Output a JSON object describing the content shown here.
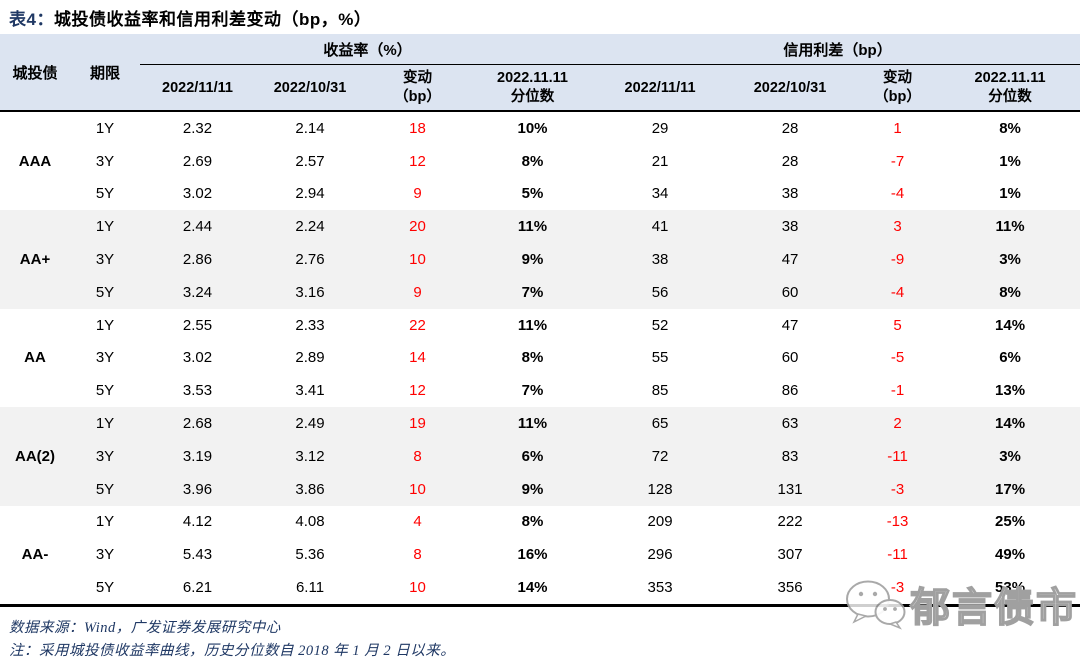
{
  "title": {
    "prefix": "表4：",
    "text": "城投债收益率和信用利差变动（bp，%）"
  },
  "table": {
    "header": {
      "rating": "城投债",
      "tenor": "期限",
      "yield_group": "收益率（%）",
      "spread_group": "信用利差（bp）",
      "sub": [
        {
          "line1": "2022/11/11",
          "line2": ""
        },
        {
          "line1": "2022/10/31",
          "line2": ""
        },
        {
          "line1": "变动",
          "line2": "（bp）"
        },
        {
          "line1": "2022.11.11",
          "line2": "分位数"
        }
      ]
    },
    "groups": [
      {
        "rating": "AAA",
        "rows": [
          {
            "tenor": "1Y",
            "y1": "2.32",
            "y0": "2.14",
            "ychg": "18",
            "ypct": "10%",
            "s1": "29",
            "s0": "28",
            "schg": "1",
            "spct": "8%"
          },
          {
            "tenor": "3Y",
            "y1": "2.69",
            "y0": "2.57",
            "ychg": "12",
            "ypct": "8%",
            "s1": "21",
            "s0": "28",
            "schg": "-7",
            "spct": "1%"
          },
          {
            "tenor": "5Y",
            "y1": "3.02",
            "y0": "2.94",
            "ychg": "9",
            "ypct": "5%",
            "s1": "34",
            "s0": "38",
            "schg": "-4",
            "spct": "1%"
          }
        ]
      },
      {
        "rating": "AA+",
        "rows": [
          {
            "tenor": "1Y",
            "y1": "2.44",
            "y0": "2.24",
            "ychg": "20",
            "ypct": "11%",
            "s1": "41",
            "s0": "38",
            "schg": "3",
            "spct": "11%"
          },
          {
            "tenor": "3Y",
            "y1": "2.86",
            "y0": "2.76",
            "ychg": "10",
            "ypct": "9%",
            "s1": "38",
            "s0": "47",
            "schg": "-9",
            "spct": "3%"
          },
          {
            "tenor": "5Y",
            "y1": "3.24",
            "y0": "3.16",
            "ychg": "9",
            "ypct": "7%",
            "s1": "56",
            "s0": "60",
            "schg": "-4",
            "spct": "8%"
          }
        ]
      },
      {
        "rating": "AA",
        "rows": [
          {
            "tenor": "1Y",
            "y1": "2.55",
            "y0": "2.33",
            "ychg": "22",
            "ypct": "11%",
            "s1": "52",
            "s0": "47",
            "schg": "5",
            "spct": "14%"
          },
          {
            "tenor": "3Y",
            "y1": "3.02",
            "y0": "2.89",
            "ychg": "14",
            "ypct": "8%",
            "s1": "55",
            "s0": "60",
            "schg": "-5",
            "spct": "6%"
          },
          {
            "tenor": "5Y",
            "y1": "3.53",
            "y0": "3.41",
            "ychg": "12",
            "ypct": "7%",
            "s1": "85",
            "s0": "86",
            "schg": "-1",
            "spct": "13%"
          }
        ]
      },
      {
        "rating": "AA(2)",
        "rows": [
          {
            "tenor": "1Y",
            "y1": "2.68",
            "y0": "2.49",
            "ychg": "19",
            "ypct": "11%",
            "s1": "65",
            "s0": "63",
            "schg": "2",
            "spct": "14%"
          },
          {
            "tenor": "3Y",
            "y1": "3.19",
            "y0": "3.12",
            "ychg": "8",
            "ypct": "6%",
            "s1": "72",
            "s0": "83",
            "schg": "-11",
            "spct": "3%"
          },
          {
            "tenor": "5Y",
            "y1": "3.96",
            "y0": "3.86",
            "ychg": "10",
            "ypct": "9%",
            "s1": "128",
            "s0": "131",
            "schg": "-3",
            "spct": "17%"
          }
        ]
      },
      {
        "rating": "AA-",
        "rows": [
          {
            "tenor": "1Y",
            "y1": "4.12",
            "y0": "4.08",
            "ychg": "4",
            "ypct": "8%",
            "s1": "209",
            "s0": "222",
            "schg": "-13",
            "spct": "25%"
          },
          {
            "tenor": "3Y",
            "y1": "5.43",
            "y0": "5.36",
            "ychg": "8",
            "ypct": "16%",
            "s1": "296",
            "s0": "307",
            "schg": "-11",
            "spct": "49%"
          },
          {
            "tenor": "5Y",
            "y1": "6.21",
            "y0": "6.11",
            "ychg": "10",
            "ypct": "14%",
            "s1": "353",
            "s0": "356",
            "schg": "-3",
            "spct": "53%"
          }
        ]
      }
    ]
  },
  "footer": {
    "source": "数据来源：Wind，广发证券发展研究中心",
    "note": "注：采用城投债收益率曲线，历史分位数自 2018 年 1 月 2 日以来。"
  },
  "watermark": {
    "label": "郁言债市",
    "icon": "wechat-icon"
  },
  "colors": {
    "header_bg": "#dce4f1",
    "band_bg": "#f2f2f2",
    "change_red": "#ff0000",
    "title_navy": "#1f3864",
    "watermark_gray": "#a0a0a0"
  }
}
